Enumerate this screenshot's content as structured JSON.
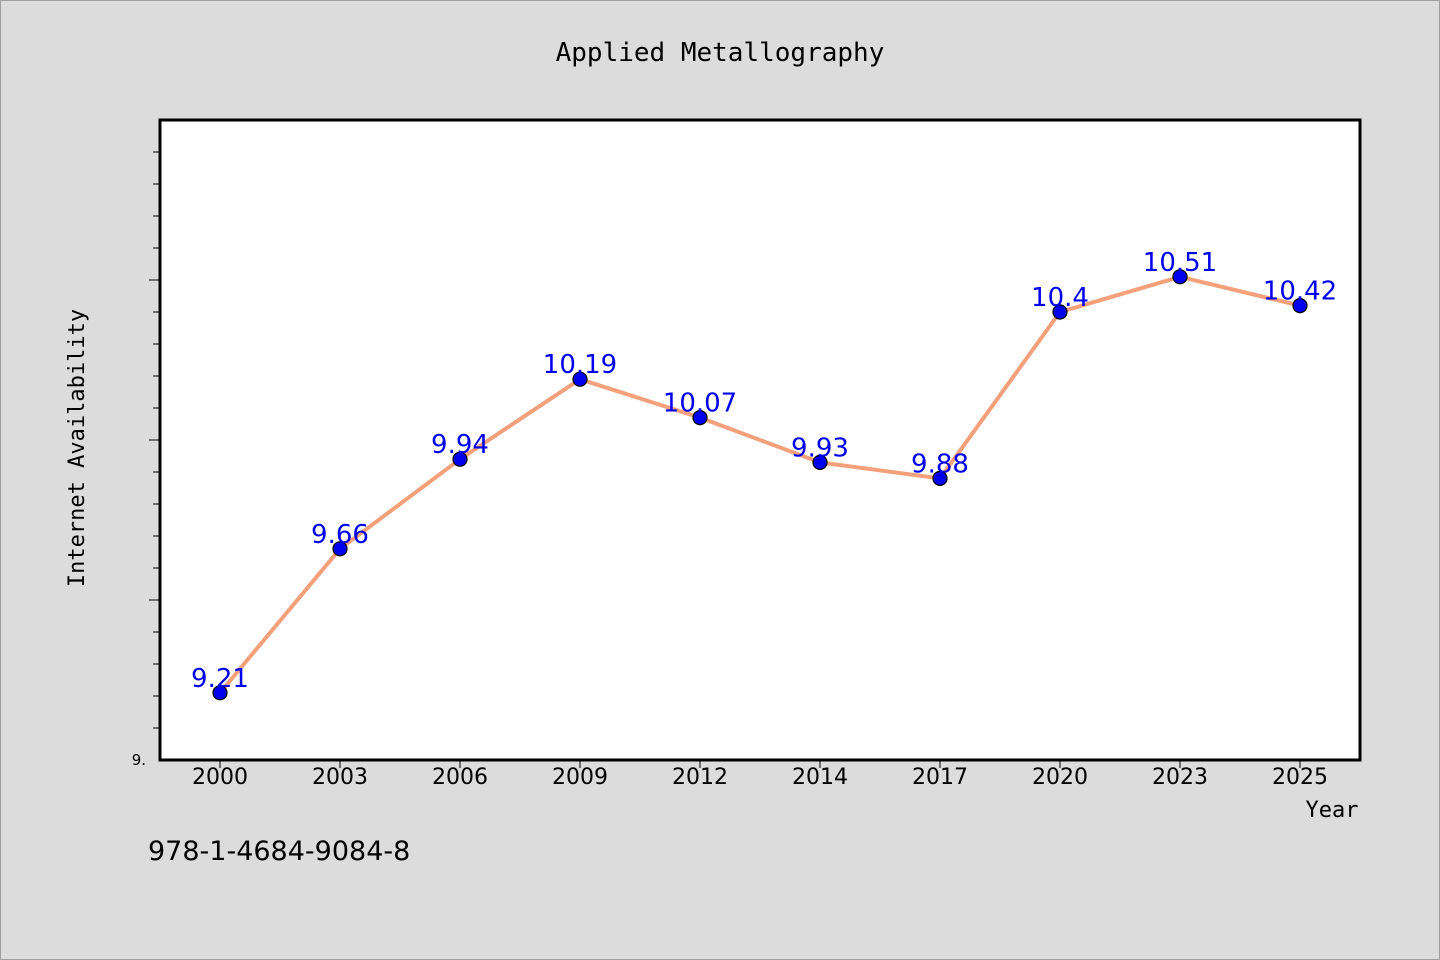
{
  "chart_data": {
    "type": "line",
    "title": "Applied Metallography",
    "xlabel": "Year",
    "ylabel": "Internet Availability",
    "categories": [
      "2000",
      "2003",
      "2006",
      "2009",
      "2012",
      "2014",
      "2017",
      "2020",
      "2023",
      "2025"
    ],
    "series": [
      {
        "values": [
          9.21,
          9.66,
          9.94,
          10.19,
          10.07,
          9.93,
          9.88,
          10.4,
          10.51,
          10.42
        ],
        "labels": [
          "9.21",
          "9.66",
          "9.94",
          "10.19",
          "10.07",
          "9.93",
          "9.88",
          "10.4",
          "10.51",
          "10.42"
        ]
      }
    ],
    "ylim": [
      9.0,
      11.0
    ],
    "y_tick_labels": [
      {
        "value": 9.0,
        "label": "9."
      }
    ],
    "grid": false,
    "legend": "none",
    "colors": {
      "line": "#f4a07a",
      "marker": "#0000ee",
      "label": "#0000ee",
      "plot_bg": "#ffffff",
      "page_bg": "#dcdcdc"
    }
  },
  "footer": {
    "code": "978-1-4684-9084-8"
  }
}
